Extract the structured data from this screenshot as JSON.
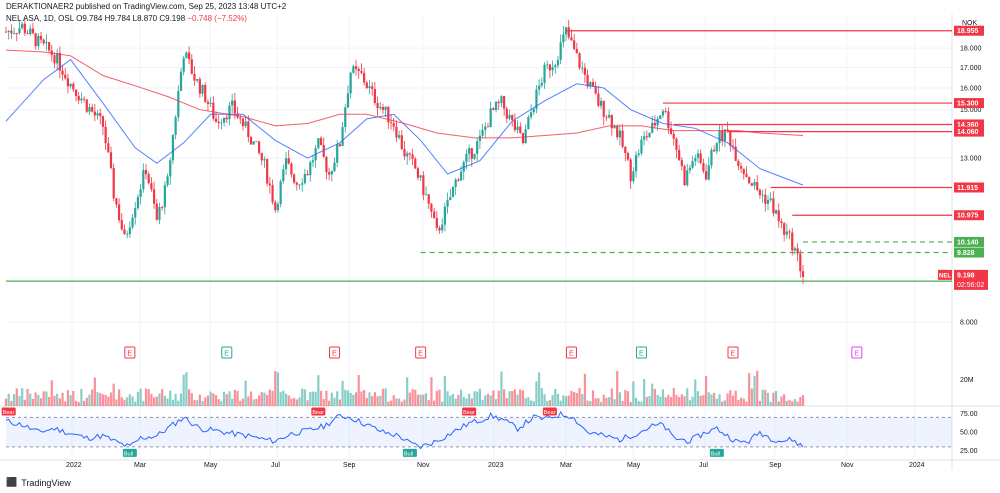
{
  "header": {
    "published": "DERAKTIONAER2 published on TradingView.com, Sep 25, 2023 13:48 UTC+2"
  },
  "legend": {
    "symbol": "NEL ASA, 1D, OSL",
    "open": "O9.784",
    "high": "H9.784",
    "low": "L8.870",
    "close": "C9.198",
    "change": "−0.748 (−7.52%)"
  },
  "currency": "NOK",
  "footer": {
    "brand": "TradingView",
    "logo_glyph": "⬛"
  },
  "colors": {
    "up": "#26a69a",
    "down": "#f23645",
    "ma_blue": "#2962ff",
    "ma_red": "#f23645",
    "rsi": "#2962ff",
    "level": "#f23645",
    "support": "#4caf50"
  },
  "chart_data": {
    "type": "candlestick",
    "x_ticks": [
      "2022",
      "Mar",
      "May",
      "Jul",
      "Sep",
      "Nov",
      "2023",
      "Mar",
      "May",
      "Jul",
      "Sep",
      "Nov",
      "2024"
    ],
    "price_ticks": [
      "18.000",
      "17.000",
      "16.000",
      "15.000",
      "13.000",
      "8.000"
    ],
    "ylim": [
      8.0,
      19.8
    ],
    "price_scale": "log",
    "close_path": [
      [
        0,
        18.9
      ],
      [
        6,
        19.2
      ],
      [
        12,
        18.3
      ],
      [
        18,
        17.6
      ],
      [
        24,
        16.2
      ],
      [
        30,
        15.2
      ],
      [
        36,
        14.3
      ],
      [
        40,
        11.7
      ],
      [
        44,
        10.2
      ],
      [
        48,
        11.4
      ],
      [
        52,
        12.6
      ],
      [
        56,
        10.8
      ],
      [
        60,
        12.1
      ],
      [
        63,
        14.8
      ],
      [
        66,
        17.8
      ],
      [
        70,
        16.5
      ],
      [
        74,
        15.6
      ],
      [
        78,
        14.5
      ],
      [
        84,
        15.1
      ],
      [
        90,
        14.0
      ],
      [
        96,
        12.7
      ],
      [
        100,
        11.2
      ],
      [
        104,
        12.8
      ],
      [
        108,
        12.1
      ],
      [
        112,
        12.5
      ],
      [
        116,
        13.5
      ],
      [
        120,
        12.4
      ],
      [
        124,
        13.6
      ],
      [
        128,
        16.8
      ],
      [
        132,
        16.6
      ],
      [
        136,
        15.7
      ],
      [
        140,
        15.0
      ],
      [
        144,
        14.4
      ],
      [
        148,
        13.2
      ],
      [
        152,
        12.6
      ],
      [
        156,
        11.6
      ],
      [
        160,
        10.4
      ],
      [
        164,
        11.3
      ],
      [
        168,
        12.4
      ],
      [
        172,
        13.1
      ],
      [
        176,
        13.7
      ],
      [
        180,
        14.8
      ],
      [
        184,
        15.3
      ],
      [
        188,
        14.4
      ],
      [
        192,
        13.6
      ],
      [
        196,
        15.3
      ],
      [
        200,
        16.8
      ],
      [
        204,
        17.4
      ],
      [
        208,
        18.9
      ],
      [
        212,
        17.5
      ],
      [
        216,
        16.3
      ],
      [
        220,
        15.3
      ],
      [
        224,
        14.7
      ],
      [
        228,
        13.8
      ],
      [
        232,
        12.4
      ],
      [
        236,
        13.6
      ],
      [
        240,
        14.2
      ],
      [
        244,
        15.1
      ],
      [
        248,
        13.8
      ],
      [
        252,
        12.2
      ],
      [
        256,
        13.1
      ],
      [
        260,
        12.4
      ],
      [
        264,
        13.8
      ],
      [
        268,
        14.0
      ],
      [
        272,
        12.9
      ],
      [
        276,
        12.2
      ],
      [
        280,
        11.7
      ],
      [
        284,
        11.4
      ],
      [
        288,
        10.6
      ],
      [
        292,
        10.1
      ],
      [
        296,
        9.2
      ]
    ],
    "moving_averages": [
      {
        "color": "blue",
        "points": [
          [
            0,
            14.5
          ],
          [
            14,
            16.4
          ],
          [
            24,
            17.4
          ],
          [
            36,
            15.3
          ],
          [
            48,
            13.4
          ],
          [
            56,
            12.8
          ],
          [
            66,
            13.6
          ],
          [
            76,
            14.8
          ],
          [
            88,
            14.8
          ],
          [
            100,
            13.7
          ],
          [
            112,
            13.0
          ],
          [
            124,
            13.6
          ],
          [
            134,
            14.6
          ],
          [
            144,
            14.8
          ],
          [
            154,
            13.7
          ],
          [
            164,
            12.4
          ],
          [
            176,
            12.9
          ],
          [
            188,
            14.5
          ],
          [
            200,
            15.4
          ],
          [
            212,
            16.2
          ],
          [
            222,
            16.0
          ],
          [
            232,
            15.0
          ],
          [
            244,
            14.4
          ],
          [
            256,
            14.2
          ],
          [
            268,
            13.6
          ],
          [
            280,
            12.6
          ],
          [
            296,
            12.0
          ]
        ]
      },
      {
        "color": "red",
        "points": [
          [
            0,
            17.9
          ],
          [
            14,
            17.8
          ],
          [
            24,
            17.6
          ],
          [
            36,
            16.6
          ],
          [
            48,
            16.1
          ],
          [
            60,
            15.6
          ],
          [
            72,
            15.0
          ],
          [
            88,
            14.7
          ],
          [
            100,
            14.3
          ],
          [
            112,
            14.4
          ],
          [
            124,
            14.8
          ],
          [
            134,
            14.8
          ],
          [
            148,
            14.4
          ],
          [
            160,
            14.0
          ],
          [
            174,
            13.8
          ],
          [
            188,
            13.8
          ],
          [
            200,
            13.9
          ],
          [
            212,
            14.0
          ],
          [
            224,
            14.3
          ],
          [
            236,
            14.3
          ],
          [
            248,
            14.1
          ],
          [
            260,
            14.1
          ],
          [
            272,
            14.1
          ],
          [
            280,
            14.0
          ],
          [
            296,
            13.9
          ]
        ]
      }
    ],
    "price_levels": [
      {
        "label": "18.955",
        "value": 18.955,
        "x_start": 208,
        "style": "solid"
      },
      {
        "label": "15.300",
        "value": 15.3,
        "x_start": 244,
        "style": "solid"
      },
      {
        "label": "14.360",
        "value": 14.36,
        "x_start": 248,
        "style": "solid"
      },
      {
        "label": "14.060",
        "value": 14.06,
        "x_start": 268,
        "style": "solid"
      },
      {
        "label": "11.915",
        "value": 11.915,
        "x_start": 284,
        "style": "solid"
      },
      {
        "label": "10.975",
        "value": 10.975,
        "x_start": 292,
        "style": "solid"
      },
      {
        "label": "10.140",
        "value": 10.14,
        "x_start": 296,
        "style": "dashed"
      },
      {
        "label": "9.828",
        "value": 9.828,
        "x_start": 154,
        "style": "dashed"
      },
      {
        "label": "9.030",
        "value": 9.03,
        "x_start": 0,
        "style": "solid"
      }
    ],
    "current_price": {
      "symbol": "NEL",
      "value_label": "9.198",
      "countdown": "02:56:02",
      "value": 9.198
    },
    "earnings": [
      {
        "x": 46,
        "label": "E",
        "color": "red"
      },
      {
        "x": 82,
        "label": "E",
        "color": "green"
      },
      {
        "x": 122,
        "label": "E",
        "color": "red"
      },
      {
        "x": 154,
        "label": "E",
        "color": "red"
      },
      {
        "x": 210,
        "label": "E",
        "color": "red"
      },
      {
        "x": 236,
        "label": "E",
        "color": "green"
      },
      {
        "x": 270,
        "label": "E",
        "color": "red"
      },
      {
        "x": 316,
        "label": "E",
        "color": "magenta"
      }
    ],
    "volume_label": "20M",
    "rsi_ticks": [
      "75.00",
      "50.00",
      "25.00"
    ],
    "rsi_upper": 70,
    "rsi_lower": 30,
    "rsi_values": [
      [
        0,
        65
      ],
      [
        6,
        60
      ],
      [
        12,
        50
      ],
      [
        18,
        55
      ],
      [
        24,
        48
      ],
      [
        30,
        42
      ],
      [
        36,
        45
      ],
      [
        42,
        35
      ],
      [
        46,
        30
      ],
      [
        50,
        42
      ],
      [
        56,
        45
      ],
      [
        62,
        60
      ],
      [
        66,
        70
      ],
      [
        72,
        55
      ],
      [
        78,
        52
      ],
      [
        84,
        48
      ],
      [
        90,
        45
      ],
      [
        96,
        40
      ],
      [
        100,
        38
      ],
      [
        106,
        48
      ],
      [
        112,
        52
      ],
      [
        118,
        58
      ],
      [
        124,
        72
      ],
      [
        128,
        70
      ],
      [
        134,
        60
      ],
      [
        140,
        50
      ],
      [
        146,
        45
      ],
      [
        150,
        35
      ],
      [
        154,
        30
      ],
      [
        160,
        38
      ],
      [
        166,
        50
      ],
      [
        172,
        62
      ],
      [
        176,
        66
      ],
      [
        180,
        72
      ],
      [
        184,
        68
      ],
      [
        190,
        55
      ],
      [
        196,
        70
      ],
      [
        200,
        68
      ],
      [
        206,
        74
      ],
      [
        210,
        72
      ],
      [
        216,
        50
      ],
      [
        222,
        45
      ],
      [
        228,
        40
      ],
      [
        234,
        48
      ],
      [
        240,
        58
      ],
      [
        244,
        60
      ],
      [
        248,
        42
      ],
      [
        254,
        38
      ],
      [
        260,
        50
      ],
      [
        264,
        55
      ],
      [
        268,
        45
      ],
      [
        272,
        36
      ],
      [
        276,
        38
      ],
      [
        280,
        50
      ],
      [
        284,
        42
      ],
      [
        288,
        38
      ],
      [
        292,
        40
      ],
      [
        296,
        30
      ]
    ],
    "rsi_signals": [
      {
        "x": 1,
        "label": "Bear",
        "kind": "bear"
      },
      {
        "x": 46,
        "label": "Bull",
        "kind": "bull"
      },
      {
        "x": 116,
        "label": "Bear",
        "kind": "bear"
      },
      {
        "x": 150,
        "label": "Bull",
        "kind": "bull"
      },
      {
        "x": 172,
        "label": "Bear",
        "kind": "bear"
      },
      {
        "x": 202,
        "label": "Bear",
        "kind": "bear"
      },
      {
        "x": 264,
        "label": "Bull",
        "kind": "bull"
      }
    ]
  }
}
